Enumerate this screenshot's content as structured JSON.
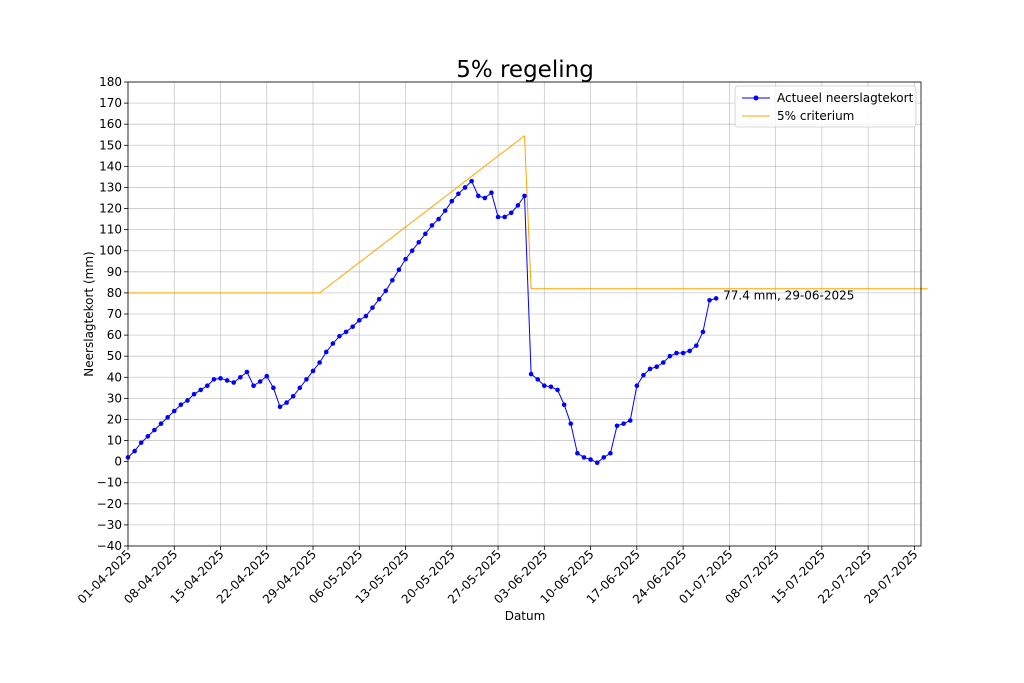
{
  "chart_data": {
    "type": "line",
    "title": "5% regeling",
    "xlabel": "Datum",
    "ylabel": "Neerslagtekort (mm)",
    "ylim": [
      -40,
      180
    ],
    "yticks": [
      -40,
      -30,
      -20,
      -10,
      0,
      10,
      20,
      30,
      40,
      50,
      60,
      70,
      80,
      90,
      100,
      110,
      120,
      130,
      140,
      150,
      160,
      170,
      180
    ],
    "ytick_labels": [
      "−40",
      "−30",
      "−20",
      "−10",
      "0",
      "10",
      "20",
      "30",
      "40",
      "50",
      "60",
      "70",
      "80",
      "90",
      "100",
      "110",
      "120",
      "130",
      "140",
      "150",
      "160",
      "170",
      "180"
    ],
    "xlim": [
      "2025-04-01",
      "2025-07-30"
    ],
    "xticks": [
      "2025-04-01",
      "2025-04-08",
      "2025-04-15",
      "2025-04-22",
      "2025-04-29",
      "2025-05-06",
      "2025-05-13",
      "2025-05-20",
      "2025-05-27",
      "2025-06-03",
      "2025-06-10",
      "2025-06-17",
      "2025-06-24",
      "2025-07-01",
      "2025-07-08",
      "2025-07-15",
      "2025-07-22",
      "2025-07-29"
    ],
    "xtick_labels": [
      "01-04-2025",
      "08-04-2025",
      "15-04-2025",
      "22-04-2025",
      "29-04-2025",
      "06-05-2025",
      "13-05-2025",
      "20-05-2025",
      "27-05-2025",
      "03-06-2025",
      "10-06-2025",
      "17-06-2025",
      "24-06-2025",
      "01-07-2025",
      "08-07-2025",
      "15-07-2025",
      "22-07-2025",
      "29-07-2025"
    ],
    "grid": true,
    "legend_position": "top-right",
    "series": [
      {
        "name": "Actueel neerslagtekort",
        "color": "#0000ff",
        "marker": "circle",
        "x": [
          "2025-04-01",
          "2025-04-02",
          "2025-04-03",
          "2025-04-04",
          "2025-04-05",
          "2025-04-06",
          "2025-04-07",
          "2025-04-08",
          "2025-04-09",
          "2025-04-10",
          "2025-04-11",
          "2025-04-12",
          "2025-04-13",
          "2025-04-14",
          "2025-04-15",
          "2025-04-16",
          "2025-04-17",
          "2025-04-18",
          "2025-04-19",
          "2025-04-20",
          "2025-04-21",
          "2025-04-22",
          "2025-04-23",
          "2025-04-24",
          "2025-04-25",
          "2025-04-26",
          "2025-04-27",
          "2025-04-28",
          "2025-04-29",
          "2025-04-30",
          "2025-05-01",
          "2025-05-02",
          "2025-05-03",
          "2025-05-04",
          "2025-05-05",
          "2025-05-06",
          "2025-05-07",
          "2025-05-08",
          "2025-05-09",
          "2025-05-10",
          "2025-05-11",
          "2025-05-12",
          "2025-05-13",
          "2025-05-14",
          "2025-05-15",
          "2025-05-16",
          "2025-05-17",
          "2025-05-18",
          "2025-05-19",
          "2025-05-20",
          "2025-05-21",
          "2025-05-22",
          "2025-05-23",
          "2025-05-24",
          "2025-05-25",
          "2025-05-26",
          "2025-05-27",
          "2025-05-28",
          "2025-05-29",
          "2025-05-30",
          "2025-05-31",
          "2025-06-01",
          "2025-06-02",
          "2025-06-03",
          "2025-06-04",
          "2025-06-05",
          "2025-06-06",
          "2025-06-07",
          "2025-06-08",
          "2025-06-09",
          "2025-06-10",
          "2025-06-11",
          "2025-06-12",
          "2025-06-13",
          "2025-06-14",
          "2025-06-15",
          "2025-06-16",
          "2025-06-17",
          "2025-06-18",
          "2025-06-19",
          "2025-06-20",
          "2025-06-21",
          "2025-06-22",
          "2025-06-23",
          "2025-06-24",
          "2025-06-25",
          "2025-06-26",
          "2025-06-27",
          "2025-06-28",
          "2025-06-29"
        ],
        "y": [
          2,
          5,
          9,
          12,
          15,
          18,
          21,
          24,
          27,
          29,
          32,
          34,
          36,
          39,
          39.5,
          38.5,
          37.5,
          40,
          42.5,
          36,
          38,
          40.5,
          35,
          26,
          28,
          31,
          35,
          39,
          43,
          47,
          52,
          56,
          59.5,
          61.5,
          64,
          67,
          69,
          73,
          77,
          81,
          86,
          91,
          96,
          100,
          104,
          108,
          112,
          115,
          119,
          123.5,
          127,
          130,
          133,
          126,
          125,
          127.5,
          116,
          116,
          118,
          121.5,
          126,
          41.5,
          39,
          36,
          35.5,
          34,
          27,
          18,
          4,
          2,
          1,
          -0.5,
          2,
          4,
          17,
          18,
          19.5,
          36,
          41,
          44,
          45,
          47,
          50,
          51.5,
          51.5,
          52.5,
          55,
          61.5,
          76.5,
          77.4
        ]
      },
      {
        "name": "5% criterium",
        "color": "#ffa500",
        "marker": "none",
        "x": [
          "2025-04-01",
          "2025-04-30",
          "2025-05-31",
          "2025-06-01",
          "2025-07-31"
        ],
        "y": [
          80,
          80,
          154.5,
          82,
          82
        ]
      }
    ],
    "annotations": [
      {
        "text": "77.4 mm, 29-06-2025",
        "x": "2025-06-29",
        "y": 77.4
      }
    ]
  }
}
